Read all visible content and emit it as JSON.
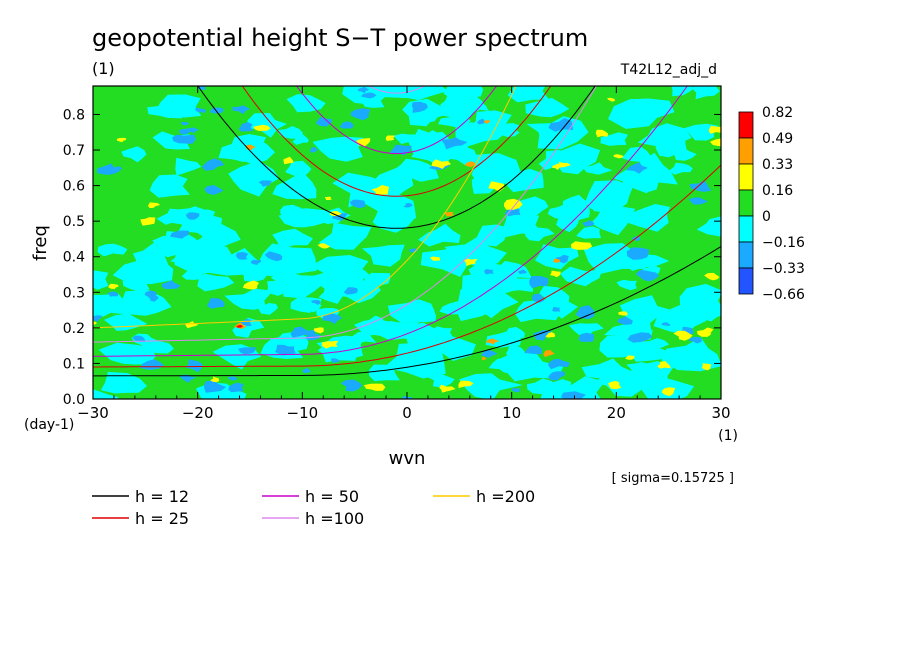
{
  "chart_data": {
    "type": "heatmap",
    "title": "geopotential height S−T power spectrum",
    "subtitle_left": "(1)",
    "subtitle_right": "T42L12_adj_d",
    "xlabel": "wvn",
    "ylabel": "freq",
    "x_unit": "(1)",
    "y_unit": "(day-1)",
    "xlim": [
      -30,
      30
    ],
    "ylim": [
      0.0,
      0.88
    ],
    "x_ticks": [
      -30,
      -20,
      -10,
      0,
      10,
      20,
      30
    ],
    "x_tick_labels": [
      "−30",
      "−20",
      "−10",
      "0",
      "10",
      "20",
      "30"
    ],
    "y_ticks": [
      0.0,
      0.1,
      0.2,
      0.3,
      0.4,
      0.5,
      0.6,
      0.7,
      0.8
    ],
    "y_tick_labels": [
      "0.0",
      "0.1",
      "0.2",
      "0.3",
      "0.4",
      "0.5",
      "0.6",
      "0.7",
      "0.8"
    ],
    "sigma_text": "[ sigma=0.15725 ]",
    "colorbar": {
      "levels": [
        "0.82",
        "0.49",
        "0.33",
        "0.16",
        "0",
        "−0.16",
        "−0.33",
        "−0.66"
      ],
      "colors": [
        "#ff0000",
        "#ffa000",
        "#ffff00",
        "#22dd22",
        "#00ffff",
        "#1aaaff",
        "#2255ff"
      ]
    },
    "field_colors": {
      "green": "#22dd22",
      "cyan": "#00ffff",
      "yellow": "#ffff00",
      "blue": "#1aaaff",
      "darkblue": "#2255ff",
      "orange": "#ffa000",
      "red": "#ff0000"
    },
    "series": [
      {
        "name": "h = 12",
        "h": 12,
        "color": "#000000"
      },
      {
        "name": "h = 25",
        "h": 25,
        "color": "#dd0000"
      },
      {
        "name": "h = 50",
        "h": 50,
        "color": "#cc00cc"
      },
      {
        "name": "h =100",
        "h": 100,
        "color": "#dd88ee"
      },
      {
        "name": "h =200",
        "h": 200,
        "color": "#ffcc00"
      }
    ]
  }
}
